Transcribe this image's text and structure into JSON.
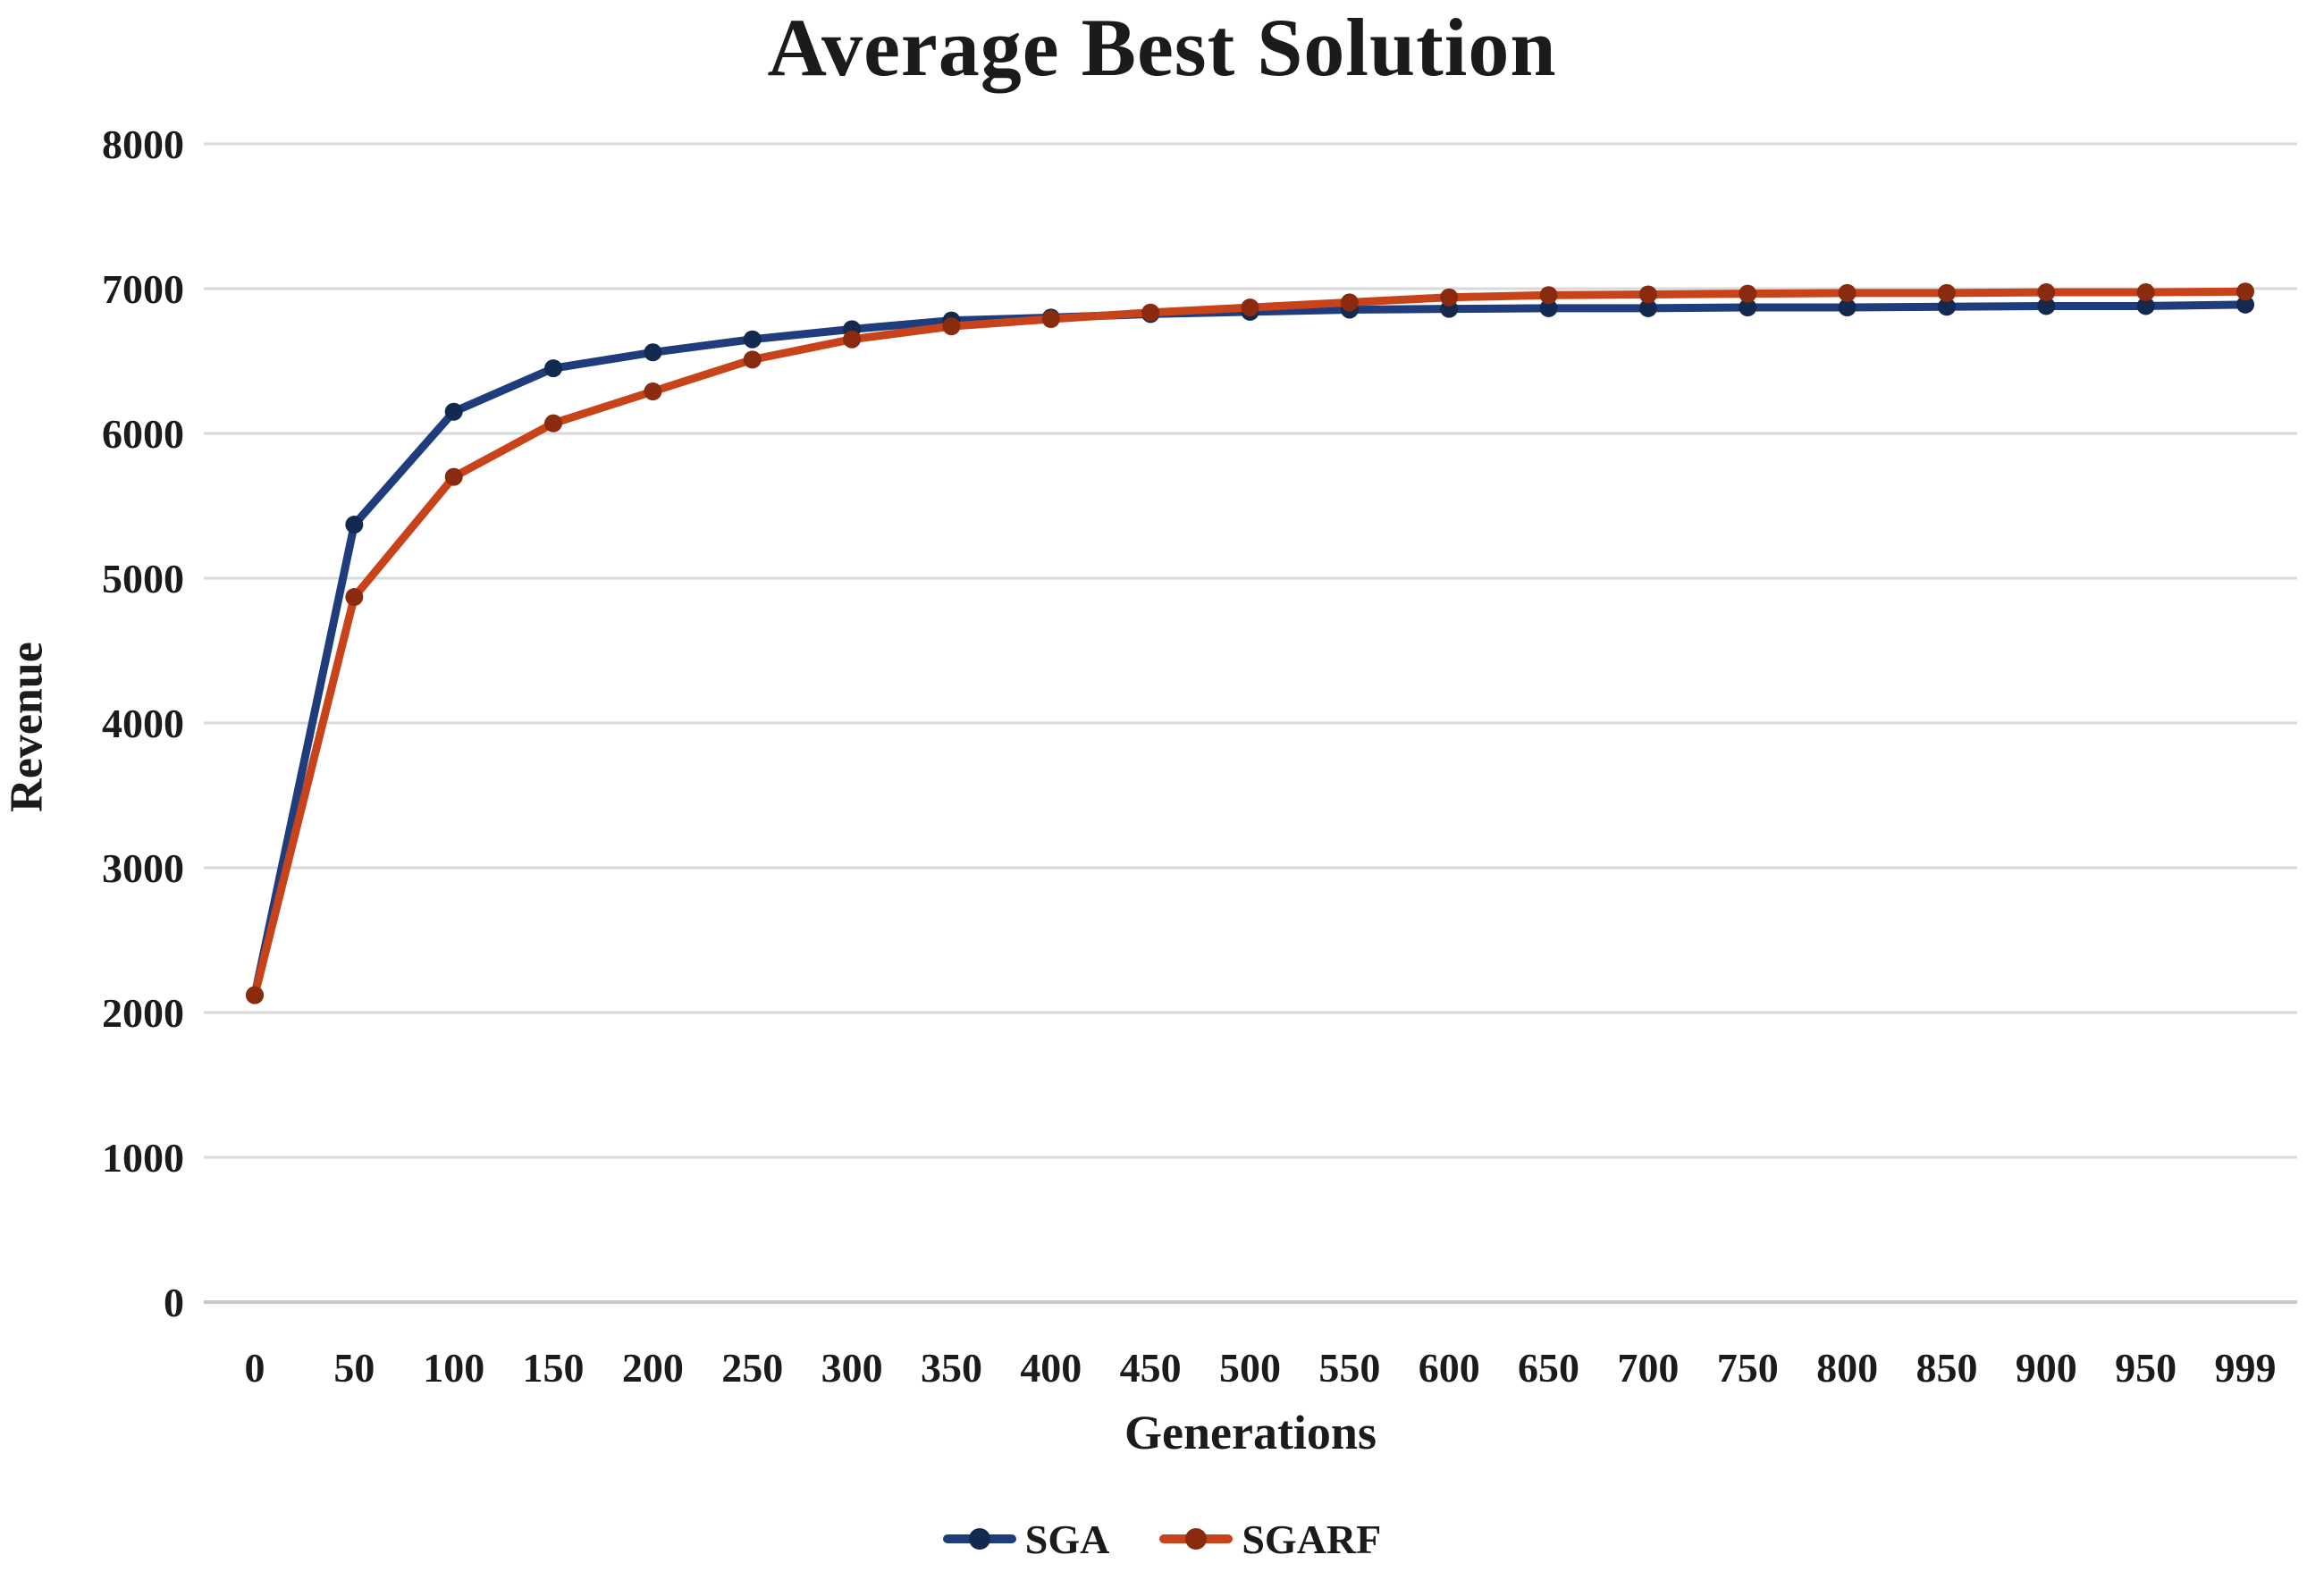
{
  "chart_data": {
    "type": "line",
    "title": "Average Best Solution",
    "xlabel": "Generations",
    "ylabel": "Revenue",
    "categories": [
      "0",
      "50",
      "100",
      "150",
      "200",
      "250",
      "300",
      "350",
      "400",
      "450",
      "500",
      "550",
      "600",
      "650",
      "700",
      "750",
      "800",
      "850",
      "900",
      "950",
      "999"
    ],
    "y_ticks": [
      0,
      1000,
      2000,
      3000,
      4000,
      5000,
      6000,
      7000,
      8000
    ],
    "ylim": [
      0,
      8000
    ],
    "grid": "horizontal",
    "legend_position": "bottom",
    "background_color": "#ffffff",
    "gridline_color": "#d9d9d9",
    "baseline_color": "#c9c9c9",
    "text_color": "#1b1b1b",
    "series": [
      {
        "name": "SGA",
        "color": "#1f3d7c",
        "dot_color": "#13294f",
        "values": [
          2120,
          5370,
          6150,
          6450,
          6560,
          6650,
          6720,
          6780,
          6800,
          6825,
          6840,
          6855,
          6860,
          6865,
          6865,
          6870,
          6870,
          6875,
          6880,
          6880,
          6890
        ]
      },
      {
        "name": "SGARF",
        "color": "#c8431a",
        "dot_color": "#8a2a0e",
        "values": [
          2120,
          4870,
          5700,
          6070,
          6290,
          6510,
          6650,
          6740,
          6790,
          6835,
          6870,
          6905,
          6940,
          6955,
          6960,
          6965,
          6970,
          6970,
          6975,
          6975,
          6980
        ]
      }
    ]
  }
}
